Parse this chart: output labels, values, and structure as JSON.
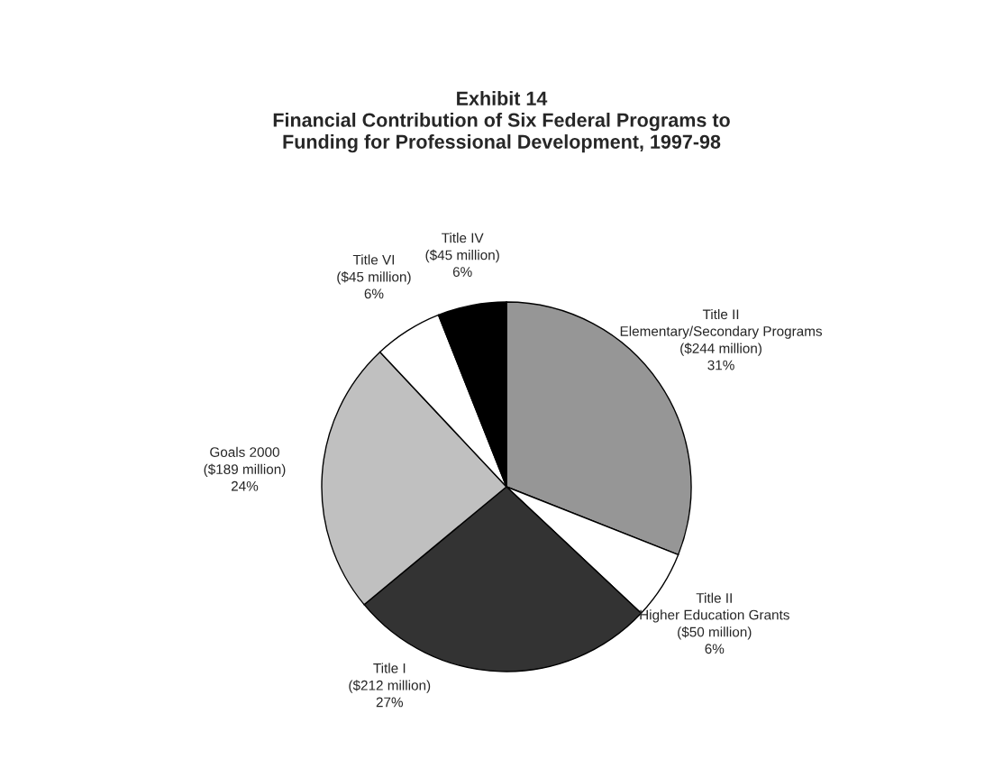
{
  "chart_data": {
    "type": "pie",
    "title": "Exhibit 14\nFinancial Contribution of Six Federal Programs to\nFunding for Professional Development, 1997-98",
    "categories": [
      "Title II\nElementary/Secondary Programs",
      "Title II\nHigher Education Grants",
      "Title I",
      "Goals 2000",
      "Title VI",
      "Title IV"
    ],
    "values": [
      31,
      6,
      27,
      24,
      6,
      6
    ],
    "value_labels": [
      "($244 million)\n31%",
      "($50 million)\n6%",
      "($212 million)\n27%",
      "($189 million)\n24%",
      "($45 million)\n6%",
      "($45 million)\n6%"
    ],
    "colors": [
      "#969696",
      "#ffffff",
      "#333333",
      "#c0c0c0",
      "#ffffff",
      "#000000"
    ]
  }
}
